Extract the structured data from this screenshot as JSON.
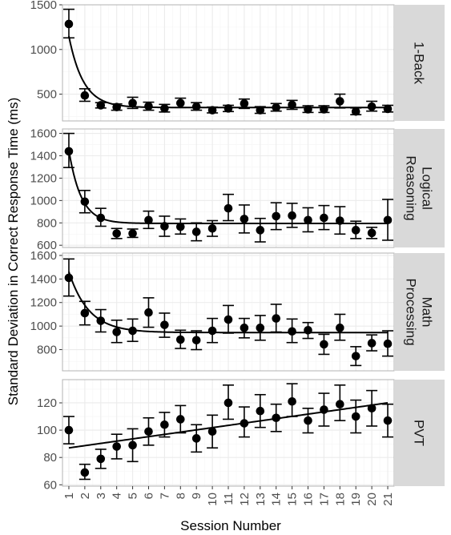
{
  "chart_data": {
    "type": "scatter",
    "xlabel": "Session Number",
    "ylabel": "Standard Deviation in Correct Response Time (ms)",
    "x": [
      1,
      2,
      3,
      4,
      5,
      6,
      7,
      8,
      9,
      10,
      11,
      12,
      13,
      14,
      15,
      16,
      17,
      18,
      19,
      20,
      21
    ],
    "xlim": [
      0.6,
      21.4
    ],
    "grid": true,
    "colors": {
      "points": "#000000",
      "strip_bg": "#d9d9d9",
      "grid_major": "#ebebeb",
      "grid_minor": "#f5f5f5",
      "panel_border": "#b3b3b3"
    },
    "panels": [
      {
        "label": "1-Back",
        "ylim": [
          200,
          1500
        ],
        "yticks": [
          500,
          1000,
          1500
        ],
        "values": [
          1285,
          485,
          375,
          355,
          400,
          365,
          340,
          400,
          360,
          320,
          340,
          395,
          320,
          350,
          380,
          330,
          330,
          420,
          305,
          360,
          335
        ],
        "err_low": [
          1130,
          420,
          345,
          320,
          340,
          320,
          300,
          350,
          320,
          290,
          305,
          340,
          285,
          310,
          330,
          295,
          295,
          345,
          270,
          310,
          300
        ],
        "err_high": [
          1450,
          560,
          405,
          390,
          465,
          410,
          385,
          455,
          405,
          355,
          375,
          445,
          360,
          395,
          430,
          370,
          370,
          500,
          345,
          420,
          375
        ],
        "fit_asymptote": 350,
        "fit_amplitude": 2400,
        "fit_rate": 1.1,
        "fit_type": "exponential"
      },
      {
        "label": "Logical\nReasoning",
        "ylim": [
          580,
          1640
        ],
        "yticks": [
          600,
          800,
          1000,
          1200,
          1400,
          1600
        ],
        "values": [
          1440,
          990,
          845,
          705,
          705,
          825,
          770,
          765,
          720,
          750,
          930,
          835,
          735,
          860,
          865,
          825,
          845,
          820,
          735,
          710,
          825
        ],
        "err_low": [
          1295,
          890,
          770,
          660,
          670,
          750,
          680,
          700,
          640,
          680,
          820,
          710,
          630,
          740,
          760,
          720,
          740,
          700,
          660,
          660,
          645
        ],
        "err_high": [
          1600,
          1090,
          930,
          750,
          745,
          905,
          860,
          835,
          800,
          820,
          1055,
          960,
          840,
          980,
          975,
          935,
          955,
          945,
          815,
          760,
          1010
        ],
        "fit_asymptote": 795,
        "fit_amplitude": 2400,
        "fit_rate": 1.3,
        "fit_type": "exponential"
      },
      {
        "label": "Math\nProcessing",
        "ylim": [
          620,
          1620
        ],
        "yticks": [
          800,
          1000,
          1200,
          1400,
          1600
        ],
        "values": [
          1410,
          1110,
          1045,
          950,
          960,
          1115,
          1010,
          885,
          880,
          960,
          1055,
          985,
          985,
          1065,
          955,
          965,
          845,
          985,
          745,
          855,
          850
        ],
        "err_low": [
          1255,
          1010,
          950,
          860,
          870,
          990,
          905,
          810,
          800,
          860,
          940,
          900,
          880,
          950,
          860,
          895,
          760,
          880,
          665,
          790,
          745
        ],
        "err_high": [
          1570,
          1210,
          1140,
          1050,
          1060,
          1240,
          1110,
          965,
          960,
          1065,
          1175,
          1065,
          1090,
          1185,
          1060,
          1030,
          930,
          1100,
          825,
          925,
          960
        ],
        "fit_asymptote": 945,
        "fit_amplitude": 1150,
        "fit_rate": 0.8,
        "fit_type": "exponential"
      },
      {
        "label": "PVT",
        "ylim": [
          59,
          137
        ],
        "yticks": [
          60,
          80,
          100,
          120
        ],
        "values": [
          100,
          69,
          79,
          88,
          89,
          99,
          104,
          108,
          94,
          99,
          120,
          105,
          114,
          109,
          121,
          107,
          115,
          119,
          110,
          116,
          107
        ],
        "err_low": [
          90,
          64,
          72,
          79,
          77,
          89,
          95,
          98,
          84,
          87,
          108,
          95,
          102,
          99,
          110,
          98,
          103,
          107,
          98,
          103,
          95
        ],
        "err_high": [
          110,
          75,
          86,
          97,
          101,
          109,
          113,
          118,
          104,
          111,
          133,
          117,
          126,
          119,
          134,
          116,
          127,
          133,
          122,
          129,
          119
        ],
        "fit_start": 87,
        "fit_end": 120,
        "fit_type": "linear"
      }
    ]
  }
}
